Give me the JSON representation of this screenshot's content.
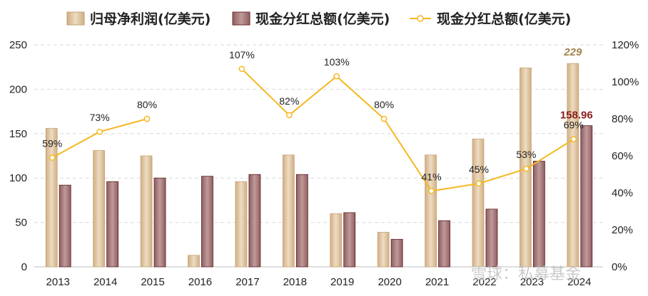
{
  "chart_data": {
    "type": "bar",
    "categories": [
      "2013",
      "2014",
      "2015",
      "2016",
      "2017",
      "2018",
      "2019",
      "2020",
      "2021",
      "2022",
      "2023",
      "2024"
    ],
    "series": [
      {
        "name": "归母净利润(亿美元)",
        "type": "bar",
        "axis": "left",
        "color": "#dcc29f",
        "values": [
          156,
          131,
          125,
          13,
          96,
          126,
          60,
          39,
          126,
          144,
          224,
          229
        ]
      },
      {
        "name": "现金分红总额(亿美元)",
        "type": "bar",
        "axis": "left",
        "color": "#a8787a",
        "values": [
          92,
          96,
          100,
          102,
          104,
          104,
          61,
          31,
          52,
          65,
          119,
          158.96
        ]
      },
      {
        "name": "现金分红总额(亿美元)",
        "type": "line",
        "axis": "right",
        "color": "#f5b820",
        "values": [
          59,
          73,
          80,
          null,
          107,
          82,
          103,
          80,
          41,
          45,
          53,
          69
        ],
        "labels": [
          "59%",
          "73%",
          "80%",
          "",
          "107%",
          "82%",
          "103%",
          "80%",
          "41%",
          "45%",
          "53%",
          "69%"
        ]
      }
    ],
    "y_left": {
      "min": 0,
      "max": 250,
      "ticks": [
        "0",
        "50",
        "100",
        "150",
        "200",
        "250"
      ]
    },
    "y_right": {
      "min": 0,
      "max": 120,
      "ticks": [
        "0%",
        "20%",
        "40%",
        "60%",
        "80%",
        "100%",
        "120%"
      ]
    },
    "annotations": [
      {
        "text": "229",
        "color": "#a0824a"
      },
      {
        "text": "158.96",
        "color": "#8b1c1c"
      }
    ],
    "legend_position": "top",
    "grid": true
  },
  "watermark": "雪球：私募基金"
}
